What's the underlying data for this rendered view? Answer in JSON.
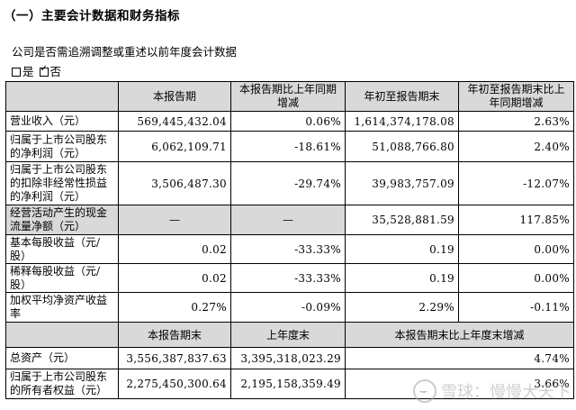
{
  "section_title": "（一）主要会计数据和财务指标",
  "question": "公司是否需追溯调整或重述以前年度会计数据",
  "choices": [
    {
      "label": "是",
      "checked": false
    },
    {
      "label": "否",
      "checked": true
    }
  ],
  "table1": {
    "headers": [
      "",
      "本报告期",
      "本报告期比上年同期增减",
      "年初至报告期末",
      "年初至报告期末比上年同期增减"
    ],
    "rows": [
      {
        "label": "营业收入（元）",
        "v1": "569,445,432.04",
        "v2": "0.06%",
        "v3": "1,614,374,178.08",
        "v4": "2.63%"
      },
      {
        "label": "归属于上市公司股东的净利润（元）",
        "v1": "6,062,109.71",
        "v2": "-18.61%",
        "v3": "51,088,766.80",
        "v4": "2.40%"
      },
      {
        "label": "归属于上市公司股东的扣除非经常性损益的净利润（元）",
        "v1": "3,506,487.30",
        "v2": "-29.74%",
        "v3": "39,983,757.09",
        "v4": "-12.07%"
      },
      {
        "label": "经营活动产生的现金流量净额（元）",
        "v1": "—",
        "v2": "—",
        "v3": "35,528,881.59",
        "v4": "117.85%"
      },
      {
        "label": "基本每股收益（元/股）",
        "v1": "0.02",
        "v2": "-33.33%",
        "v3": "0.19",
        "v4": "0.00%"
      },
      {
        "label": "稀释每股收益（元/股）",
        "v1": "0.02",
        "v2": "-33.33%",
        "v3": "0.19",
        "v4": "0.00%"
      },
      {
        "label": "加权平均净资产收益率",
        "v1": "0.27%",
        "v2": "-0.09%",
        "v3": "2.29%",
        "v4": "-0.11%"
      }
    ]
  },
  "table2": {
    "headers": [
      "",
      "本报告期末",
      "上年度末",
      "本报告期末比上年度末增减"
    ],
    "rows": [
      {
        "label": "总资产（元）",
        "v1": "3,556,387,837.63",
        "v2": "3,395,318,023.29",
        "v3": "4.74%"
      },
      {
        "label": "归属于上市公司股东的所有者权益（元）",
        "v1": "2,275,450,300.64",
        "v2": "2,195,158,359.49",
        "v3": "3.66%"
      }
    ]
  },
  "watermark": "雪球：慢慢大天下"
}
